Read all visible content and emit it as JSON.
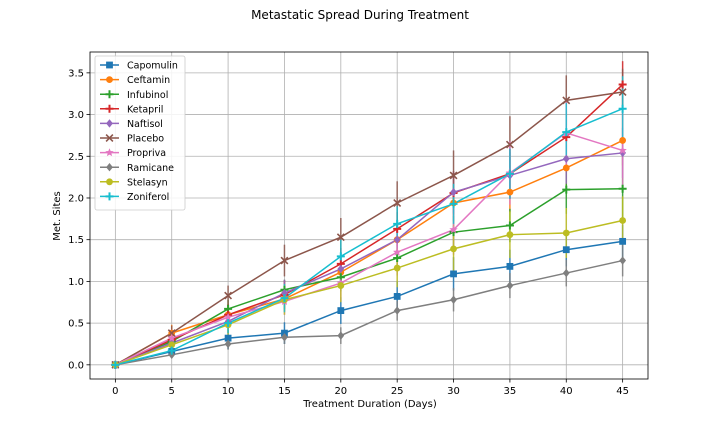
{
  "chart_data": {
    "type": "line",
    "title": "Metastatic Spread During Treatment",
    "xlabel": "Treatment Duration (Days)",
    "ylabel": "Met. Sites",
    "x": [
      0,
      5,
      10,
      15,
      20,
      25,
      30,
      35,
      40,
      45
    ],
    "xticks": [
      0,
      5,
      10,
      15,
      20,
      25,
      30,
      35,
      40,
      45
    ],
    "yticks": [
      0.0,
      0.5,
      1.0,
      1.5,
      2.0,
      2.5,
      3.0,
      3.5
    ],
    "xlim": [
      -2.25,
      47.25
    ],
    "ylim": [
      -0.17,
      3.75
    ],
    "grid": true,
    "legend_position": "top-left",
    "series": [
      {
        "name": "Capomulin",
        "color": "#1f77b4",
        "marker": "square",
        "values": [
          0.0,
          0.16,
          0.32,
          0.38,
          0.65,
          0.82,
          1.09,
          1.18,
          1.38,
          1.48
        ],
        "errors": [
          0.0,
          0.07,
          0.13,
          0.13,
          0.16,
          0.18,
          0.2,
          0.2,
          0.2,
          0.2
        ]
      },
      {
        "name": "Ceftamin",
        "color": "#ff7f0e",
        "marker": "circle",
        "values": [
          0.0,
          0.38,
          0.6,
          0.79,
          1.11,
          1.5,
          1.94,
          2.07,
          2.36,
          2.69
        ],
        "errors": [
          0.0,
          0.1,
          0.12,
          0.15,
          0.18,
          0.2,
          0.22,
          0.24,
          0.28,
          0.3
        ]
      },
      {
        "name": "Infubinol",
        "color": "#2ca02c",
        "marker": "plus",
        "values": [
          0.0,
          0.28,
          0.67,
          0.9,
          1.05,
          1.28,
          1.59,
          1.67,
          2.1,
          2.11
        ],
        "errors": [
          0.0,
          0.1,
          0.11,
          0.12,
          0.17,
          0.16,
          0.2,
          0.2,
          0.29,
          0.41
        ]
      },
      {
        "name": "Ketapril",
        "color": "#d62728",
        "marker": "plus",
        "values": [
          0.0,
          0.3,
          0.6,
          0.84,
          1.21,
          1.63,
          2.06,
          2.29,
          2.73,
          3.36
        ],
        "errors": [
          0.0,
          0.1,
          0.13,
          0.17,
          0.19,
          0.2,
          0.26,
          0.3,
          0.32,
          0.28
        ]
      },
      {
        "name": "Naftisol",
        "color": "#9467bd",
        "marker": "diamond",
        "values": [
          0.0,
          0.26,
          0.52,
          0.86,
          1.15,
          1.5,
          2.07,
          2.27,
          2.47,
          2.54
        ],
        "errors": [
          0.0,
          0.09,
          0.14,
          0.16,
          0.19,
          0.22,
          0.25,
          0.28,
          0.3,
          0.3
        ]
      },
      {
        "name": "Placebo",
        "color": "#8c564b",
        "marker": "x",
        "values": [
          0.0,
          0.38,
          0.83,
          1.25,
          1.53,
          1.94,
          2.27,
          2.64,
          3.17,
          3.27
        ],
        "errors": [
          0.0,
          0.09,
          0.12,
          0.19,
          0.23,
          0.26,
          0.3,
          0.34,
          0.3,
          0.28
        ]
      },
      {
        "name": "Propriva",
        "color": "#e377c2",
        "marker": "star",
        "values": [
          0.0,
          0.32,
          0.57,
          0.76,
          0.98,
          1.35,
          1.62,
          2.3,
          2.78,
          2.57
        ],
        "errors": [
          0.0,
          0.1,
          0.13,
          0.16,
          0.22,
          0.28,
          0.3,
          0.38,
          0.4,
          0.48
        ]
      },
      {
        "name": "Ramicane",
        "color": "#7f7f7f",
        "marker": "diamond",
        "values": [
          0.0,
          0.12,
          0.25,
          0.33,
          0.35,
          0.65,
          0.78,
          0.95,
          1.1,
          1.25
        ],
        "errors": [
          0.0,
          0.03,
          0.07,
          0.08,
          0.1,
          0.12,
          0.14,
          0.15,
          0.16,
          0.19
        ]
      },
      {
        "name": "Stelasyn",
        "color": "#bcbd22",
        "marker": "circle",
        "values": [
          0.0,
          0.24,
          0.48,
          0.78,
          0.95,
          1.16,
          1.39,
          1.56,
          1.58,
          1.73
        ],
        "errors": [
          0.0,
          0.09,
          0.12,
          0.18,
          0.2,
          0.23,
          0.28,
          0.28,
          0.3,
          0.29
        ]
      },
      {
        "name": "Zoniferol",
        "color": "#17becf",
        "marker": "plus",
        "values": [
          0.0,
          0.17,
          0.5,
          0.8,
          1.3,
          1.69,
          1.93,
          2.29,
          2.79,
          3.07
        ],
        "errors": [
          0.0,
          0.08,
          0.12,
          0.17,
          0.2,
          0.21,
          0.24,
          0.3,
          0.35,
          0.39
        ]
      }
    ]
  }
}
